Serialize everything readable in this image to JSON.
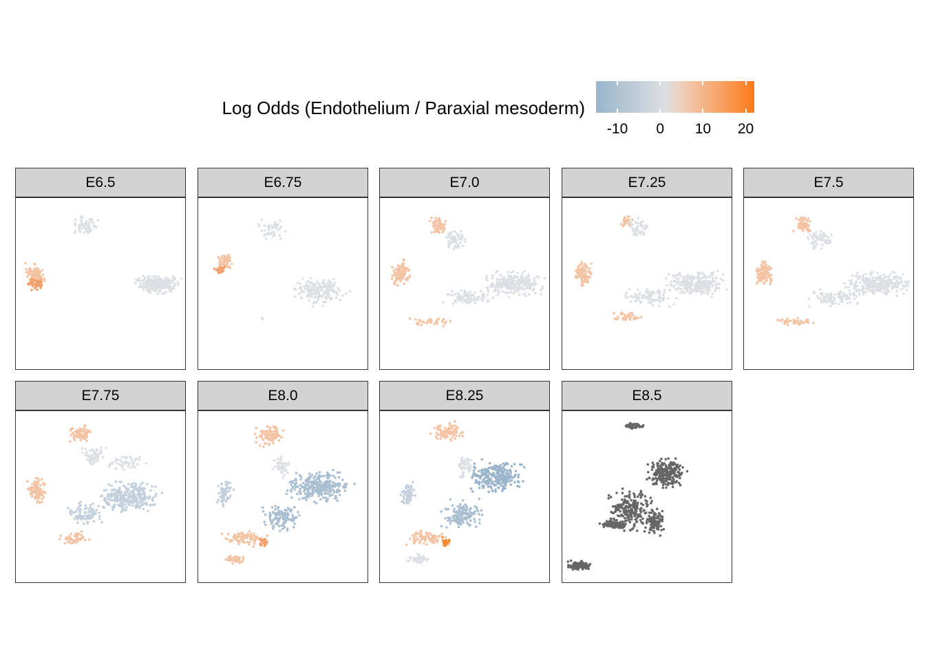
{
  "legend": {
    "title": "Log Odds (Endothelium / Paraxial mesoderm)",
    "ticks": [
      "-10",
      "0",
      "10",
      "20"
    ],
    "tick_values": [
      -10,
      0,
      10,
      20
    ],
    "range": [
      -15,
      22
    ],
    "colors": {
      "low": "#98b5cc",
      "mid": "#dddfe1",
      "high": "#ff7a1a",
      "na": "#666666"
    }
  },
  "chart_data": {
    "type": "scatter",
    "facets": [
      {
        "label": "E6.5",
        "dominant": "grey",
        "blobs": [
          "left-orange",
          "top",
          "right-grey"
        ]
      },
      {
        "label": "E6.75",
        "dominant": "grey",
        "blobs": [
          "left-orange",
          "top",
          "right-grey"
        ]
      },
      {
        "label": "E7.0",
        "dominant": "grey",
        "blobs": [
          "left-orange",
          "top-orange",
          "right-grey",
          "tail-orange"
        ]
      },
      {
        "label": "E7.25",
        "dominant": "grey",
        "blobs": [
          "left-orange",
          "top-orange",
          "right-grey",
          "tail-orange"
        ]
      },
      {
        "label": "E7.5",
        "dominant": "mixed",
        "blobs": [
          "left-orange",
          "top-orange",
          "center-blue",
          "tail-orange"
        ]
      },
      {
        "label": "E7.75",
        "dominant": "blue",
        "blobs": [
          "top-orange",
          "left-blue",
          "center-blue",
          "tail-orange"
        ]
      },
      {
        "label": "E8.0",
        "dominant": "blue",
        "blobs": [
          "top-orange",
          "left-blue",
          "center-blue",
          "tail-orange"
        ]
      },
      {
        "label": "E8.25",
        "dominant": "blue",
        "blobs": [
          "top-orange",
          "left-blue",
          "center-blue",
          "tail-orange"
        ]
      },
      {
        "label": "E8.5",
        "dominant": "na-grey",
        "blobs": [
          "all-dark-grey"
        ]
      }
    ]
  }
}
